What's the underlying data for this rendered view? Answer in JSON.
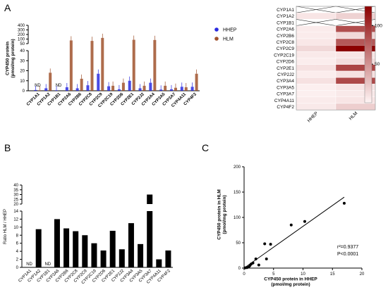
{
  "panels": {
    "a_letter": "A",
    "b_letter": "B",
    "c_letter": "C"
  },
  "chart_data": [
    {
      "id": "A",
      "type": "bar",
      "categories": [
        "CYP1A1",
        "CYP1A2",
        "CYP1B1",
        "CYP2A6",
        "CYP2B6",
        "CYP2C8",
        "CYP2C9",
        "CYP2C19",
        "CYP2D6",
        "CYP2E1",
        "CYP2J2",
        "CYP3A4",
        "CYP3A5",
        "CYP3A7",
        "CYP4A11",
        "CYP4F2"
      ],
      "series": [
        {
          "name": "HHEP",
          "color": "#2a2adf",
          "values": [
            0.8,
            2.5,
            0.5,
            3.5,
            2.5,
            5.5,
            17,
            4.5,
            1.5,
            10,
            2.5,
            8,
            1.2,
            1.5,
            4,
            4
          ]
        },
        {
          "name": "HLM",
          "color": "#a0522d",
          "values": [
            0.5,
            18,
            0,
            85,
            12,
            80,
            125,
            5,
            8,
            92,
            5,
            90,
            5,
            3,
            3.5,
            17
          ]
        }
      ],
      "nd_labels": [
        {
          "category": "CYP1A1",
          "text": "ND"
        },
        {
          "category": "CYP1B1",
          "text": "ND"
        }
      ],
      "ylabel": "CYP450 protein (pmol/mg protein)",
      "yticks_lower": [
        0,
        10,
        20,
        30,
        40
      ],
      "yticks_upper": [
        50,
        100,
        200,
        300,
        400
      ],
      "legend_position": "top-right"
    },
    {
      "id": "heatmap",
      "type": "heatmap",
      "rows": [
        "CYP1A1",
        "CYP1A2",
        "CYP1B1",
        "CYP2A6",
        "CYP2B6",
        "CYP2C8",
        "CYP2C9",
        "CYP2C19",
        "CYP2D6",
        "CYP2E1",
        "CYP2J2",
        "CYP3A4",
        "CYP3A5",
        "CYP3A7",
        "CYP4A11",
        "CYP4F2"
      ],
      "columns": [
        "HHEP",
        "HLM"
      ],
      "values": [
        [
          null,
          null
        ],
        [
          8,
          18
        ],
        [
          null,
          null
        ],
        [
          5,
          85
        ],
        [
          5,
          15
        ],
        [
          7,
          80
        ],
        [
          15,
          125
        ],
        [
          6,
          8
        ],
        [
          4,
          12
        ],
        [
          10,
          90
        ],
        [
          4,
          10
        ],
        [
          10,
          88
        ],
        [
          3,
          8
        ],
        [
          3,
          6
        ],
        [
          5,
          8
        ],
        [
          6,
          20
        ]
      ],
      "colorbar_ticks": [
        50,
        100
      ],
      "colorbar_max": 125
    },
    {
      "id": "B",
      "type": "bar",
      "categories": [
        "CYP1A1",
        "CYP1A2",
        "CYP1B1",
        "CYP2A6",
        "CYP2B6",
        "CYP2C8",
        "CYP2C9",
        "CYP2C19",
        "CYP2D6",
        "CYP2E1",
        "CYP2J2",
        "CYP3A4",
        "CYP3A5",
        "CYP3A7",
        "CYP4A11",
        "CYP4F2"
      ],
      "values": [
        null,
        9.5,
        null,
        12,
        9.7,
        9,
        8,
        6,
        4.2,
        9.1,
        4.5,
        11,
        5.8,
        30,
        2,
        4.2
      ],
      "nd_labels": [
        {
          "category": "CYP1A1",
          "text": "ND"
        },
        {
          "category": "CYP1B1",
          "text": "ND"
        }
      ],
      "ylabel": "Ratio HLM / HHEP",
      "yticks_lower": [
        0,
        2,
        4,
        6,
        8,
        10,
        12,
        14
      ],
      "yticks_upper": [
        20,
        25,
        30,
        35,
        40
      ]
    },
    {
      "id": "C",
      "type": "scatter",
      "points": [
        [
          0.2,
          0.5
        ],
        [
          0.5,
          1
        ],
        [
          0.8,
          2
        ],
        [
          1,
          5
        ],
        [
          1.2,
          8
        ],
        [
          1.5,
          10
        ],
        [
          2,
          18
        ],
        [
          2.5,
          6
        ],
        [
          3.5,
          48
        ],
        [
          3.8,
          18
        ],
        [
          4.5,
          47
        ],
        [
          8,
          85
        ],
        [
          10.3,
          92
        ],
        [
          17,
          128
        ]
      ],
      "fit_line": [
        [
          0,
          0
        ],
        [
          17,
          140
        ]
      ],
      "xlabel": "CYP450 protein in HHEP (pmol/mg protein)",
      "ylabel": "CYP450 protein in HLM (pmol/mg protein)",
      "xlim": [
        0,
        20
      ],
      "ylim": [
        0,
        200
      ],
      "xticks": [
        0,
        5,
        10,
        15,
        20
      ],
      "yticks": [
        0,
        50,
        100,
        150,
        200
      ],
      "r2_text": "r²=0.9377",
      "p_text": "P<0.0001"
    }
  ]
}
